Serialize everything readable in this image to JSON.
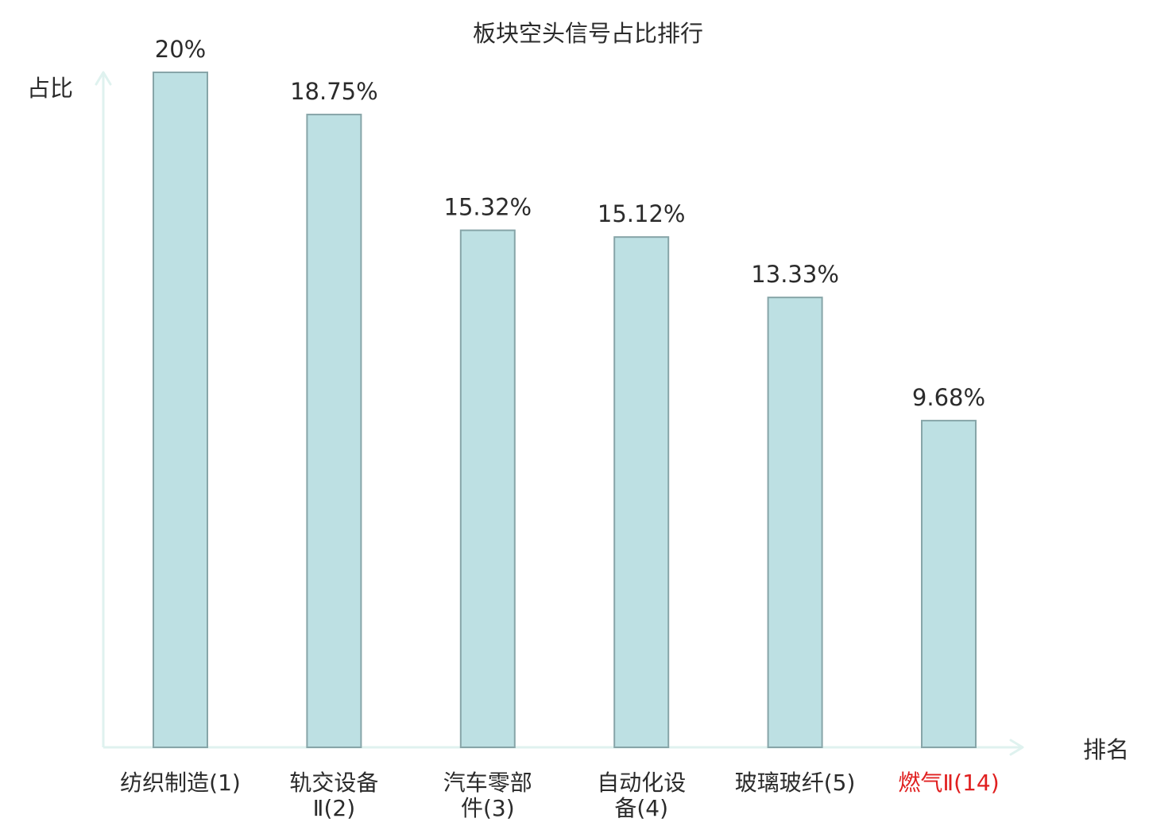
{
  "chart_data": {
    "type": "bar",
    "title": "板块空头信号占比排行",
    "ylabel": "占比",
    "xlabel": "排名",
    "grid": false,
    "categories": [
      {
        "lines": [
          "纺织制造(1)"
        ],
        "highlight": false
      },
      {
        "lines": [
          "轨交设备",
          "Ⅱ(2)"
        ],
        "highlight": false
      },
      {
        "lines": [
          "汽车零部",
          "件(3)"
        ],
        "highlight": false
      },
      {
        "lines": [
          "自动化设",
          "备(4)"
        ],
        "highlight": false
      },
      {
        "lines": [
          "玻璃玻纤(5)"
        ],
        "highlight": false
      },
      {
        "lines": [
          "燃气Ⅱ(14)"
        ],
        "highlight": true
      }
    ],
    "values": [
      20,
      18.75,
      15.32,
      15.12,
      13.33,
      9.68
    ],
    "value_labels": [
      "20%",
      "18.75%",
      "15.32%",
      "15.12%",
      "13.33%",
      "9.68%"
    ],
    "ylim": [
      0,
      20
    ],
    "colors": {
      "bar_fill": "#bde0e3",
      "bar_stroke": "#87a5a8",
      "axis": "#dff2ef",
      "text": "#2b2b2b",
      "highlight_text": "#e02020"
    }
  }
}
